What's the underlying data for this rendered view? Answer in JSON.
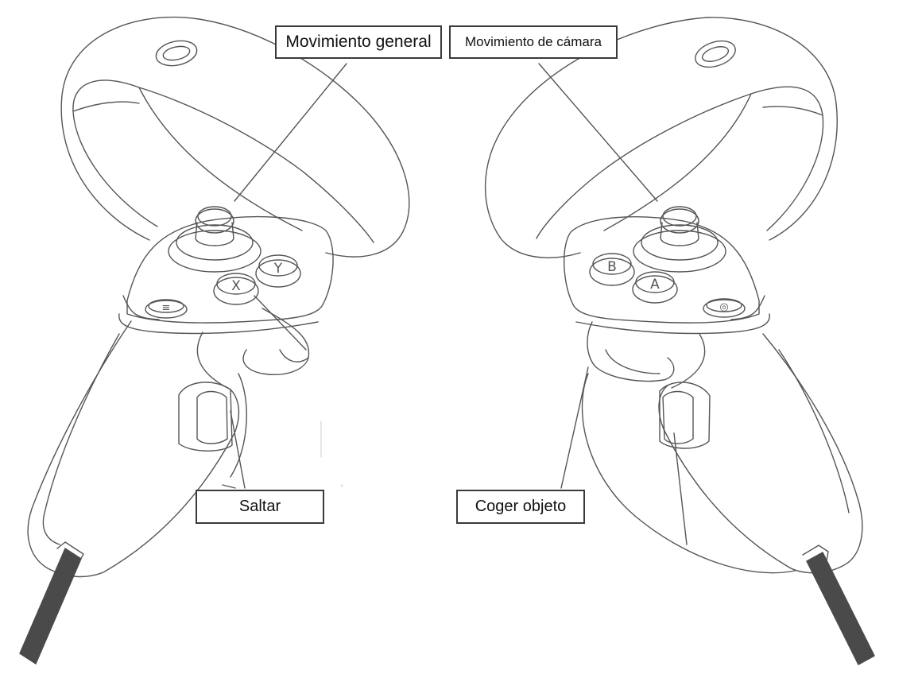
{
  "labels": {
    "movimiento_general": "Movimiento general",
    "movimiento_camara": "Movimiento de cámara",
    "saltar": "Saltar",
    "coger_objeto": "Coger objeto"
  },
  "controllers": {
    "left": {
      "button_top": "Y",
      "button_bottom": "X",
      "menu_glyph": "≡"
    },
    "right": {
      "button_top": "B",
      "button_bottom": "A",
      "menu_glyph": "◎"
    }
  },
  "colors": {
    "line": "#555555",
    "strap": "#4a4a4a",
    "label_border": "#3a3a3a"
  }
}
